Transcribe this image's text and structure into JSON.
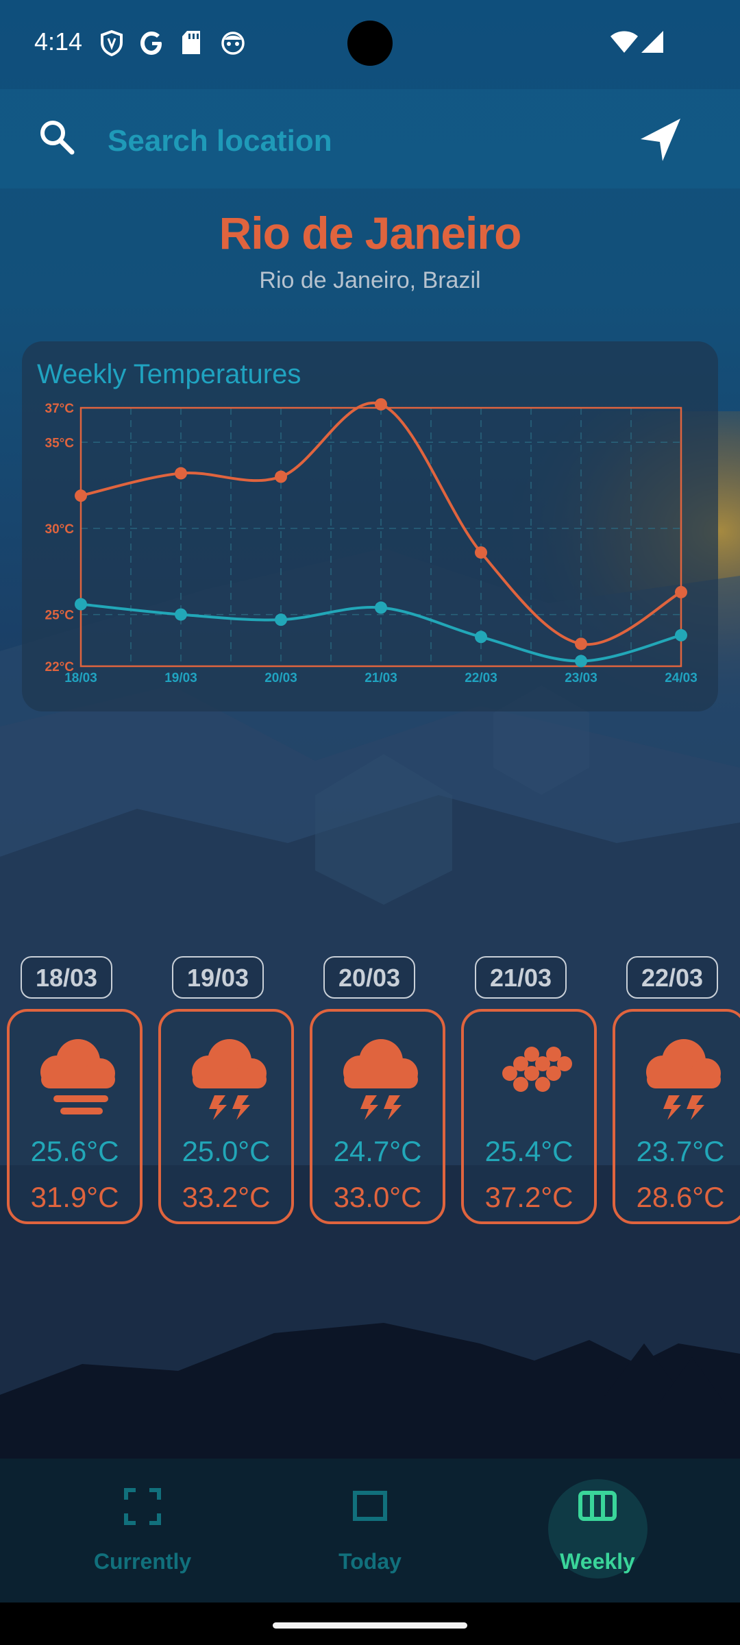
{
  "status_bar": {
    "time": "4:14",
    "icons": [
      "shield-icon",
      "google-icon",
      "sd-card-icon",
      "bot-icon",
      "wifi-icon",
      "signal-icon"
    ]
  },
  "search": {
    "placeholder": "Search location",
    "value": "",
    "icon": "search-icon",
    "locate_icon": "navigation-arrow-icon"
  },
  "location": {
    "city": "Rio de Janeiro",
    "region": "Rio de Janeiro, Brazil"
  },
  "colors": {
    "accent_orange": "#e0643e",
    "accent_teal": "#22a7b8",
    "title_teal": "#20a3c0",
    "nav_active": "#3ad59a",
    "nav_inactive": "#11707c"
  },
  "chart_data": {
    "type": "line",
    "title": "Weekly Temperatures",
    "x": [
      "18/03",
      "19/03",
      "20/03",
      "21/03",
      "22/03",
      "23/03",
      "24/03"
    ],
    "series": [
      {
        "color": "#e0643e",
        "values": [
          31.9,
          33.2,
          33.0,
          37.2,
          28.6,
          23.3,
          26.3
        ]
      },
      {
        "color": "#22a7b8",
        "values": [
          25.6,
          25.0,
          24.7,
          25.4,
          23.7,
          22.3,
          23.8
        ]
      }
    ],
    "yticks": [
      {
        "value": 22,
        "label": "22°C"
      },
      {
        "value": 25,
        "label": "25°C"
      },
      {
        "value": 30,
        "label": "30°C"
      },
      {
        "value": 35,
        "label": "35°C"
      },
      {
        "value": 37,
        "label": "37°C"
      }
    ],
    "ylim": [
      22,
      37
    ],
    "grid": true
  },
  "days": [
    {
      "date": "18/03",
      "icon": "fog-icon",
      "min": "25.6°C",
      "max": "31.9°C"
    },
    {
      "date": "19/03",
      "icon": "thunderstorm-icon",
      "min": "25.0°C",
      "max": "33.2°C"
    },
    {
      "date": "20/03",
      "icon": "thunderstorm-icon",
      "min": "24.7°C",
      "max": "33.0°C"
    },
    {
      "date": "21/03",
      "icon": "sun-dots-icon",
      "min": "25.4°C",
      "max": "37.2°C"
    },
    {
      "date": "22/03",
      "icon": "thunderstorm-icon",
      "min": "23.7°C",
      "max": "28.6°C"
    }
  ],
  "nav": {
    "items": [
      {
        "label": "Currently",
        "icon": "fullscreen-icon",
        "active": false
      },
      {
        "label": "Today",
        "icon": "square-icon",
        "active": false
      },
      {
        "label": "Weekly",
        "icon": "columns-icon",
        "active": true
      }
    ]
  }
}
